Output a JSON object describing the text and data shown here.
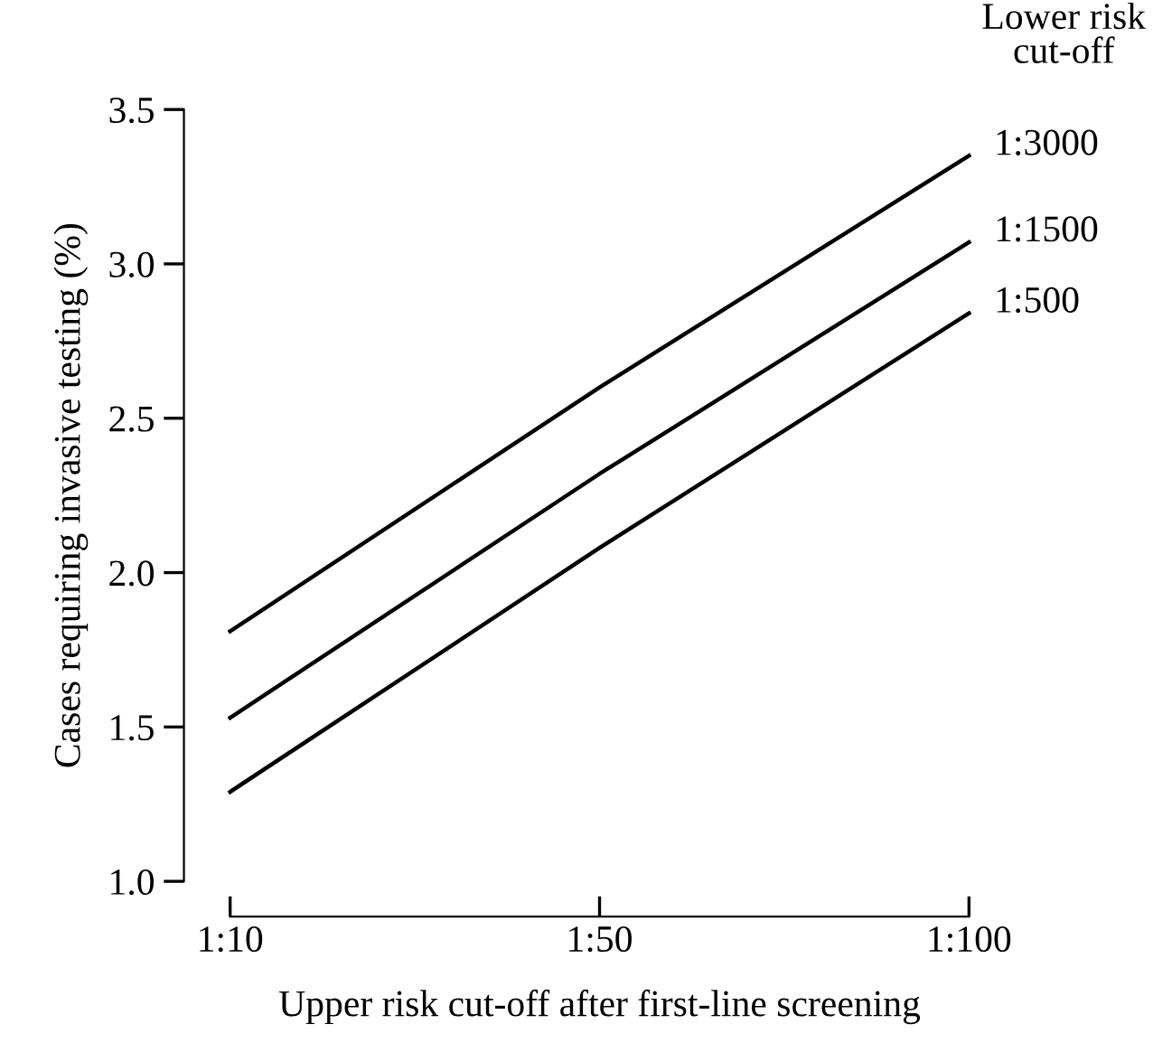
{
  "chart_data": {
    "type": "line",
    "xlabel": "Upper risk cut-off after first-line screening",
    "ylabel": "Cases requiring invasive testing (%)",
    "legend_title": "Lower risk\ncut-off",
    "categories": [
      "1:10",
      "1:50",
      "1:100"
    ],
    "series": [
      {
        "name": "1:3000",
        "color": "#000000",
        "values": [
          1.81,
          2.6,
          3.35
        ]
      },
      {
        "name": "1:1500",
        "color": "#000000",
        "values": [
          1.53,
          2.32,
          3.07
        ]
      },
      {
        "name": "1:500",
        "color": "#000000",
        "values": [
          1.29,
          2.08,
          2.84
        ]
      }
    ],
    "ylim": [
      1.0,
      3.5
    ],
    "yticks": [
      {
        "value": 1.0,
        "label": "1.0"
      },
      {
        "value": 1.5,
        "label": "1.5"
      },
      {
        "value": 2.0,
        "label": "2.0"
      },
      {
        "value": 2.5,
        "label": "2.5"
      },
      {
        "value": 3.0,
        "label": "3.0"
      },
      {
        "value": 3.5,
        "label": "3.5"
      }
    ],
    "grid": false,
    "legend": false,
    "marker": "none",
    "line_style": "solid"
  }
}
